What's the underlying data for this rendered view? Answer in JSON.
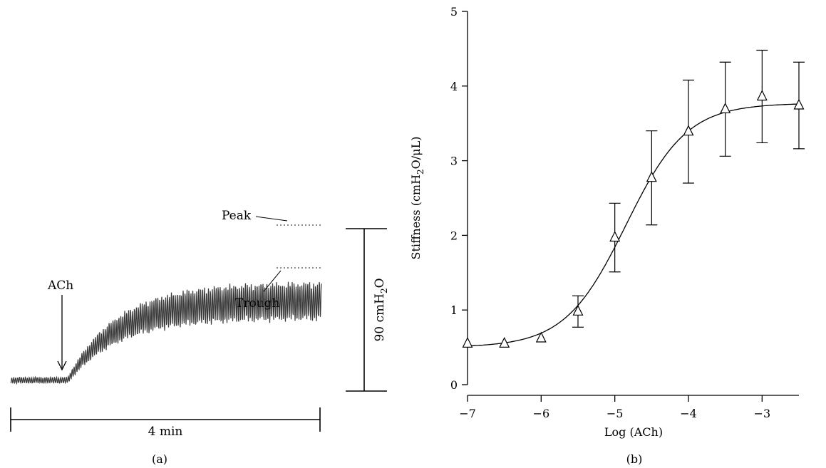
{
  "panel_a": {
    "caption": "(a)",
    "labels": {
      "ach": "ACh",
      "peak": "Peak",
      "trough": "Trough",
      "time_scale": "4 min",
      "pressure_scale": "90 cmH",
      "pressure_scale_sub": "2",
      "pressure_scale_tail": "O"
    },
    "trace": {
      "baseline_cmH2O": 6,
      "plateau_trough_cmH2O": 40,
      "plateau_peak_cmH2O": 60,
      "scale_bar_cmH2O": 90,
      "scale_bar_time_min": 4
    }
  },
  "panel_b": {
    "caption": "(b)",
    "chart_data": {
      "type": "scatter",
      "xlabel": "Log (ACh)",
      "ylabel": "Stiffness (cmH",
      "ylabel_sub": "2",
      "ylabel_tail": "O/μL)",
      "xlim": [
        -7,
        -2.5
      ],
      "ylim": [
        0,
        5
      ],
      "xticks": [
        -7,
        -6,
        -5,
        -4,
        -3
      ],
      "yticks": [
        0,
        1,
        2,
        3,
        4,
        5
      ],
      "xtick_labels": [
        "−7",
        "−6",
        "−5",
        "−4",
        "−3"
      ],
      "ytick_labels": [
        "0",
        "1",
        "2",
        "3",
        "4",
        "5"
      ],
      "marker": "open-triangle",
      "series": [
        {
          "x": [
            -7,
            -6.5,
            -6,
            -5.5,
            -5,
            -4.5,
            -4,
            -3.5,
            -3,
            -2.5
          ],
          "y": [
            0.55,
            0.55,
            0.62,
            0.98,
            1.97,
            2.77,
            3.39,
            3.69,
            3.86,
            3.74
          ],
          "error": [
            null,
            null,
            null,
            0.21,
            0.46,
            0.63,
            0.69,
            0.63,
            0.62,
            0.58
          ]
        }
      ],
      "fit": {
        "type": "sigmoid",
        "bottom": 0.5,
        "top": 3.77,
        "logEC50": -4.85,
        "hill": 1.05
      }
    }
  }
}
